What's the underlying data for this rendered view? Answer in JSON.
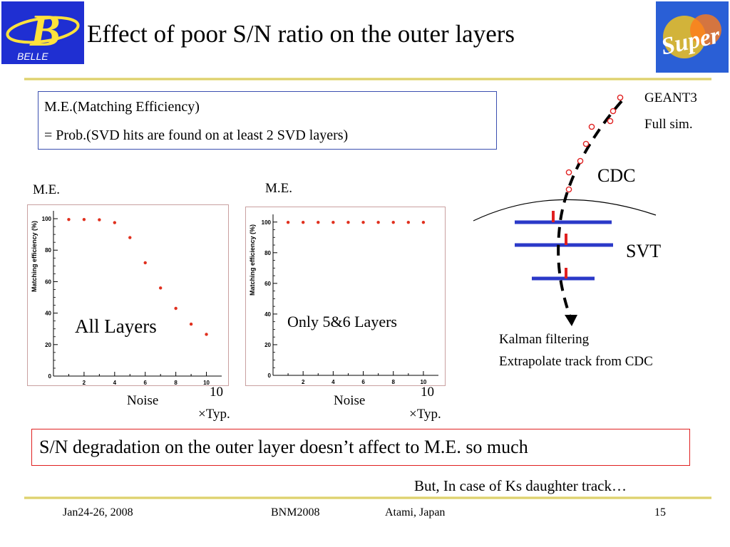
{
  "title": "Effect of poor S/N ratio on the outer layers",
  "logos": {
    "left": "BELLE",
    "right": "Super"
  },
  "definition": {
    "line1": "M.E.(Matching Efficiency)",
    "line2": "= Prob.(SVD hits are found on at least 2 SVD layers)"
  },
  "plots": [
    {
      "me_label": "M.E.",
      "ylabel": "Matching efficiency (%)",
      "overlay": "All Layers",
      "xlabel": "Noise",
      "xunit_top": "10",
      "xunit_bottom": "×Typ."
    },
    {
      "me_label": "M.E.",
      "ylabel": "Matching efficiency (%)",
      "overlay": "Only 5&6 Layers",
      "xlabel": "Noise",
      "xunit_top": "10",
      "xunit_bottom": "×Typ."
    }
  ],
  "chart_data": [
    {
      "type": "scatter",
      "ylabel": "Matching efficiency (%)",
      "xlim": [
        0,
        11
      ],
      "ylim": [
        0,
        105
      ],
      "yticks": [
        0,
        20,
        40,
        60,
        80,
        100
      ],
      "xticks": [
        2,
        4,
        6,
        8,
        10
      ],
      "x": [
        1,
        2,
        3,
        4,
        5,
        6,
        7,
        8,
        9,
        10
      ],
      "y": [
        99.5,
        99.5,
        99.3,
        97.5,
        88,
        72,
        56,
        43,
        33,
        26.5
      ],
      "color": "#e0301e"
    },
    {
      "type": "scatter",
      "ylabel": "Matching efficiency (%)",
      "xlim": [
        0,
        11
      ],
      "ylim": [
        0,
        105
      ],
      "yticks": [
        0,
        20,
        40,
        60,
        80,
        100
      ],
      "xticks": [
        2,
        4,
        6,
        8,
        10
      ],
      "x": [
        1,
        2,
        3,
        4,
        5,
        6,
        7,
        8,
        9,
        10
      ],
      "y": [
        99.8,
        99.8,
        99.8,
        99.8,
        99.8,
        99.8,
        99.8,
        99.8,
        99.8,
        99.8
      ],
      "color": "#e0301e"
    }
  ],
  "diagram": {
    "geant": "GEANT3",
    "fullsim": "Full sim.",
    "cdc": "CDC",
    "svt": "SVT",
    "kalman": "Kalman filtering",
    "extrapolate": "Extrapolate track from CDC"
  },
  "conclusion": "S/N degradation on the outer layer doesn’t affect to M.E. so much",
  "note": "But, In case of Ks daughter track…",
  "footer": {
    "date": "Jan24-26, 2008",
    "conf": "BNM2008",
    "place": "Atami, Japan",
    "page": "15"
  }
}
